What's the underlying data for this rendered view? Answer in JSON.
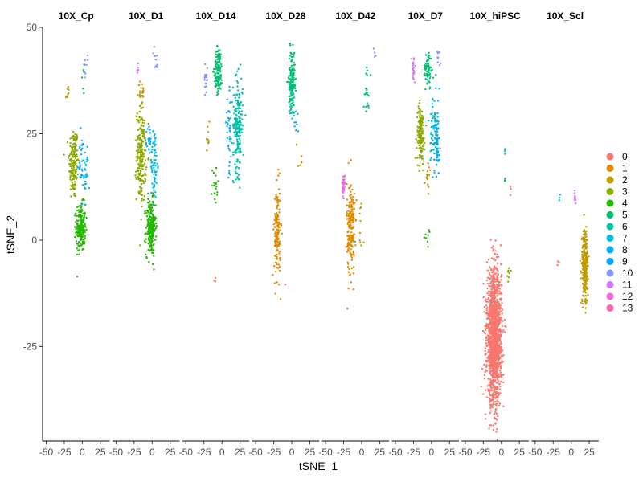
{
  "chart_data": {
    "type": "scatter",
    "xlabel": "tSNE_1",
    "ylabel": "tSNE_2",
    "x_ticks": [
      "-50",
      "-25",
      "0",
      "25"
    ],
    "y_ticks": [
      "50",
      "25",
      "0",
      "-25"
    ],
    "x_tick_values": [
      -50,
      -25,
      0,
      25
    ],
    "y_tick_values": [
      50,
      25,
      0,
      -25
    ],
    "xlim": [
      -55,
      38
    ],
    "ylim": [
      -47,
      50
    ],
    "grid": false,
    "legend_position": "right",
    "panels": [
      {
        "title": "10X_Cp",
        "clusters": [
          {
            "cluster": "3",
            "center": [
              -12,
              18
            ],
            "spread": [
              6,
              8
            ],
            "n": 170
          },
          {
            "cluster": "4",
            "center": [
              -2,
              3
            ],
            "spread": [
              6,
              5
            ],
            "n": 200
          },
          {
            "cluster": "8",
            "center": [
              -2,
              18
            ],
            "spread": [
              4,
              6
            ],
            "n": 30
          },
          {
            "cluster": "7",
            "center": [
              5,
              16
            ],
            "spread": [
              3,
              6
            ],
            "n": 25
          },
          {
            "cluster": "2",
            "center": [
              -20,
              34
            ],
            "spread": [
              2,
              2
            ],
            "n": 8
          },
          {
            "cluster": "10",
            "center": [
              5,
              41
            ],
            "spread": [
              3,
              2
            ],
            "n": 8
          },
          {
            "cluster": "5",
            "center": [
              0,
              38
            ],
            "spread": [
              2,
              3
            ],
            "n": 6
          }
        ]
      },
      {
        "title": "10X_D1",
        "clusters": [
          {
            "cluster": "3",
            "center": [
              -15,
              20
            ],
            "spread": [
              6,
              10
            ],
            "n": 220
          },
          {
            "cluster": "4",
            "center": [
              -2,
              3
            ],
            "spread": [
              6,
              6
            ],
            "n": 230
          },
          {
            "cluster": "7",
            "center": [
              3,
              18
            ],
            "spread": [
              4,
              8
            ],
            "n": 70
          },
          {
            "cluster": "8",
            "center": [
              -4,
              23
            ],
            "spread": [
              3,
              4
            ],
            "n": 25
          },
          {
            "cluster": "2",
            "center": [
              -15,
              35
            ],
            "spread": [
              4,
              3
            ],
            "n": 20
          },
          {
            "cluster": "10",
            "center": [
              5,
              42
            ],
            "spread": [
              3,
              3
            ],
            "n": 12
          },
          {
            "cluster": "11",
            "center": [
              -20,
              40
            ],
            "spread": [
              2,
              2
            ],
            "n": 5
          }
        ]
      },
      {
        "title": "10X_D14",
        "clusters": [
          {
            "cluster": "5",
            "center": [
              -5,
              40
            ],
            "spread": [
              5,
              5
            ],
            "n": 140
          },
          {
            "cluster": "6",
            "center": [
              22,
              27
            ],
            "spread": [
              6,
              10
            ],
            "n": 200
          },
          {
            "cluster": "8",
            "center": [
              10,
              25
            ],
            "spread": [
              4,
              8
            ],
            "n": 40
          },
          {
            "cluster": "4",
            "center": [
              -10,
              12
            ],
            "spread": [
              5,
              5
            ],
            "n": 20
          },
          {
            "cluster": "10",
            "center": [
              -22,
              38
            ],
            "spread": [
              2,
              4
            ],
            "n": 20
          },
          {
            "cluster": "2",
            "center": [
              -20,
              25
            ],
            "spread": [
              3,
              4
            ],
            "n": 10
          },
          {
            "cluster": "0",
            "center": [
              -10,
              -9
            ],
            "spread": [
              2,
              1
            ],
            "n": 3
          }
        ]
      },
      {
        "title": "10X_D28",
        "clusters": [
          {
            "cluster": "1",
            "center": [
              -20,
              2
            ],
            "spread": [
              4,
              10
            ],
            "n": 150
          },
          {
            "cluster": "5",
            "center": [
              0,
              38
            ],
            "spread": [
              4,
              6
            ],
            "n": 130
          },
          {
            "cluster": "6",
            "center": [
              -1,
              32
            ],
            "spread": [
              3,
              4
            ],
            "n": 20
          },
          {
            "cluster": "8",
            "center": [
              5,
              28
            ],
            "spread": [
              4,
              3
            ],
            "n": 10
          },
          {
            "cluster": "2",
            "center": [
              10,
              20
            ],
            "spread": [
              5,
              3
            ],
            "n": 6
          },
          {
            "cluster": "0",
            "center": [
              -10,
              -11
            ],
            "spread": [
              2,
              2
            ],
            "n": 2
          }
        ]
      },
      {
        "title": "10X_D42",
        "clusters": [
          {
            "cluster": "1",
            "center": [
              -15,
              3
            ],
            "spread": [
              5,
              10
            ],
            "n": 200
          },
          {
            "cluster": "12",
            "center": [
              -25,
              13
            ],
            "spread": [
              2,
              2
            ],
            "n": 30
          },
          {
            "cluster": "5",
            "center": [
              7,
              35
            ],
            "spread": [
              4,
              6
            ],
            "n": 20
          },
          {
            "cluster": "2",
            "center": [
              0,
              5
            ],
            "spread": [
              3,
              6
            ],
            "n": 10
          },
          {
            "cluster": "10",
            "center": [
              18,
              44
            ],
            "spread": [
              2,
              1
            ],
            "n": 4
          },
          {
            "cluster": "0",
            "center": [
              -20,
              -16
            ],
            "spread": [
              1,
              1
            ],
            "n": 2
          }
        ]
      },
      {
        "title": "10X_D7",
        "clusters": [
          {
            "cluster": "3",
            "center": [
              -15,
              25
            ],
            "spread": [
              5,
              6
            ],
            "n": 150
          },
          {
            "cluster": "5",
            "center": [
              -5,
              40
            ],
            "spread": [
              5,
              4
            ],
            "n": 70
          },
          {
            "cluster": "7",
            "center": [
              3,
              26
            ],
            "spread": [
              4,
              8
            ],
            "n": 70
          },
          {
            "cluster": "8",
            "center": [
              8,
              22
            ],
            "spread": [
              3,
              7
            ],
            "n": 60
          },
          {
            "cluster": "11",
            "center": [
              -25,
              40
            ],
            "spread": [
              2,
              3
            ],
            "n": 25
          },
          {
            "cluster": "10",
            "center": [
              10,
              43
            ],
            "spread": [
              2,
              2
            ],
            "n": 10
          },
          {
            "cluster": "2",
            "center": [
              -5,
              15
            ],
            "spread": [
              4,
              3
            ],
            "n": 15
          },
          {
            "cluster": "4",
            "center": [
              -5,
              2
            ],
            "spread": [
              4,
              4
            ],
            "n": 8
          }
        ]
      },
      {
        "title": "10X_hiPSC",
        "clusters": [
          {
            "cluster": "0",
            "center": [
              -10,
              -23
            ],
            "spread": [
              9,
              14
            ],
            "n": 1500
          },
          {
            "cluster": "3",
            "center": [
              10,
              -8
            ],
            "spread": [
              3,
              2
            ],
            "n": 8
          },
          {
            "cluster": "6",
            "center": [
              5,
              21
            ],
            "spread": [
              1,
              1
            ],
            "n": 4
          },
          {
            "cluster": "5",
            "center": [
              5,
              14
            ],
            "spread": [
              1,
              1
            ],
            "n": 3
          },
          {
            "cluster": "0",
            "center": [
              14,
              12
            ],
            "spread": [
              2,
              1
            ],
            "n": 3
          }
        ]
      },
      {
        "title": "10X_Scl",
        "clusters": [
          {
            "cluster": "2",
            "center": [
              19,
              -6
            ],
            "spread": [
              4,
              8
            ],
            "n": 260
          },
          {
            "cluster": "11",
            "center": [
              5,
              10
            ],
            "spread": [
              1,
              1
            ],
            "n": 15
          },
          {
            "cluster": "0",
            "center": [
              -18,
              -5
            ],
            "spread": [
              2,
              2
            ],
            "n": 4
          },
          {
            "cluster": "7",
            "center": [
              -15,
              12
            ],
            "spread": [
              3,
              3
            ],
            "n": 3
          }
        ]
      }
    ],
    "legend": [
      {
        "label": "0",
        "color": "#F8766D"
      },
      {
        "label": "1",
        "color": "#E18A00"
      },
      {
        "label": "2",
        "color": "#BE9C00"
      },
      {
        "label": "3",
        "color": "#8CAB00"
      },
      {
        "label": "4",
        "color": "#24B700"
      },
      {
        "label": "5",
        "color": "#00BE70"
      },
      {
        "label": "6",
        "color": "#00C1AB"
      },
      {
        "label": "7",
        "color": "#00BBDA"
      },
      {
        "label": "8",
        "color": "#00ACFC"
      },
      {
        "label": "9",
        "color": "#00A5FF"
      },
      {
        "label": "10",
        "color": "#8B93FF"
      },
      {
        "label": "11",
        "color": "#D575FE"
      },
      {
        "label": "12",
        "color": "#F962DD"
      },
      {
        "label": "13",
        "color": "#FF65AC"
      }
    ]
  }
}
